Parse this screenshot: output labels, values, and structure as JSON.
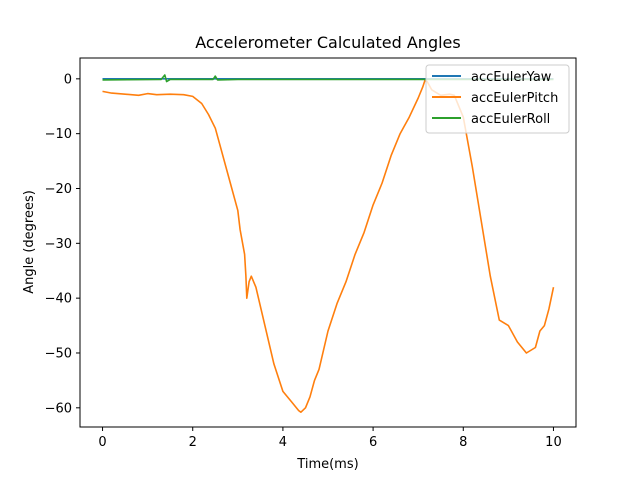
{
  "chart_data": {
    "type": "line",
    "title": "Accelerometer Calculated Angles",
    "xlabel": "Time(ms)",
    "ylabel": "Angle (degrees)",
    "xlim": [
      -0.5,
      10.5
    ],
    "ylim": [
      -63.5,
      3.8
    ],
    "x_ticks": [
      0,
      2,
      4,
      6,
      8,
      10
    ],
    "y_ticks": [
      0,
      -10,
      -20,
      -30,
      -40,
      -50,
      -60
    ],
    "x_tick_labels": [
      "0",
      "2",
      "4",
      "6",
      "8",
      "10"
    ],
    "y_tick_labels": [
      "0",
      "−10",
      "−20",
      "−30",
      "−40",
      "−50",
      "−60"
    ],
    "grid": false,
    "legend": "top-right",
    "series": [
      {
        "name": "accEulerYaw",
        "color": "#1f77b4",
        "x": [
          0,
          10
        ],
        "y": [
          0,
          0
        ]
      },
      {
        "name": "accEulerPitch",
        "color": "#ff7f0e",
        "x": [
          0,
          0.2,
          0.5,
          0.8,
          1.0,
          1.2,
          1.5,
          1.8,
          2.0,
          2.2,
          2.35,
          2.5,
          2.6,
          2.8,
          3.0,
          3.05,
          3.15,
          3.18,
          3.2,
          3.25,
          3.3,
          3.4,
          3.6,
          3.8,
          4.0,
          4.2,
          4.35,
          4.4,
          4.5,
          4.6,
          4.7,
          4.8,
          5.0,
          5.2,
          5.4,
          5.6,
          5.8,
          6.0,
          6.2,
          6.4,
          6.6,
          6.8,
          7.0,
          7.1,
          7.15,
          7.2,
          7.3,
          7.5,
          7.7,
          7.8,
          8.0,
          8.2,
          8.4,
          8.6,
          8.8,
          9.0,
          9.2,
          9.4,
          9.6,
          9.7,
          9.8,
          9.9,
          10.0
        ],
        "y": [
          -2.3,
          -2.6,
          -2.8,
          -3.0,
          -2.7,
          -2.9,
          -2.8,
          -2.9,
          -3.2,
          -4.5,
          -6.5,
          -9.0,
          -12.0,
          -18.0,
          -24.0,
          -27.5,
          -32.0,
          -36.0,
          -40.0,
          -37.0,
          -36.0,
          -38.0,
          -45.0,
          -52.0,
          -57.0,
          -59.0,
          -60.5,
          -60.8,
          -60.0,
          -58.0,
          -55.0,
          -53.0,
          -46.0,
          -41.0,
          -37.0,
          -32.0,
          -28.0,
          -23.0,
          -19.0,
          -14.0,
          -10.0,
          -7.0,
          -3.5,
          -1.5,
          -0.3,
          -0.5,
          -2.0,
          -3.0,
          -2.8,
          -3.0,
          -7.0,
          -16.0,
          -26.0,
          -36.0,
          -44.0,
          -45.0,
          -48.0,
          -50.0,
          -49.0,
          -46.0,
          -45.0,
          -42.0,
          -38.0
        ]
      },
      {
        "name": "accEulerRoll",
        "color": "#2ca02c",
        "x": [
          0,
          1.3,
          1.38,
          1.42,
          1.5,
          2.45,
          2.5,
          2.55,
          3.0,
          5.0,
          7.0,
          10.0
        ],
        "y": [
          -0.2,
          -0.1,
          0.7,
          -0.5,
          -0.1,
          -0.1,
          0.5,
          -0.2,
          -0.1,
          -0.1,
          -0.1,
          -0.1
        ]
      }
    ]
  }
}
